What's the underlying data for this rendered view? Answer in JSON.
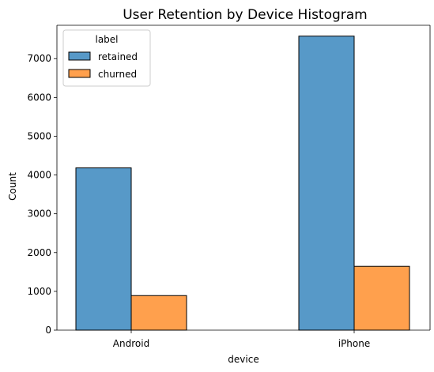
{
  "chart_data": {
    "type": "bar",
    "title": "User Retention by Device Histogram",
    "xlabel": "device",
    "ylabel": "Count",
    "categories": [
      "Android",
      "iPhone"
    ],
    "series": [
      {
        "name": "retained",
        "values": [
          4183,
          7580
        ],
        "color": "#5799c8"
      },
      {
        "name": "churned",
        "values": [
          891,
          1645
        ],
        "color": "#ffa04d"
      }
    ],
    "ylim": [
      0,
      7860
    ],
    "yticks": [
      0,
      1000,
      2000,
      3000,
      4000,
      5000,
      6000,
      7000
    ],
    "grid": false,
    "legend": {
      "title": "label",
      "placement": "top-left"
    }
  }
}
